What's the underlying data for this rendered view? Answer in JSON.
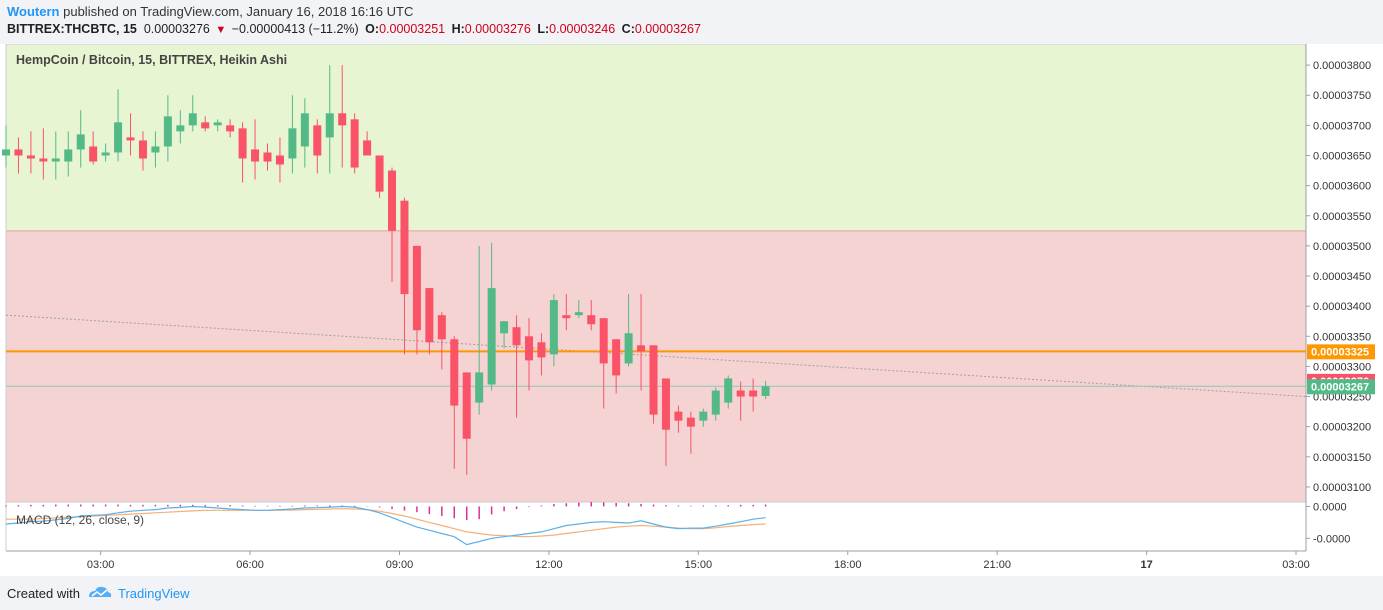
{
  "header": {
    "author": "Woutern",
    "published_text": "published on TradingView.com, January 16, 2018 16:16 UTC",
    "symbol": "BITTREX:THCBTC, 15",
    "last": "0.00003276",
    "change": "−0.00000413 (−11.2%)",
    "o_label": "O:",
    "o_value": "0.00003251",
    "h_label": "H:",
    "h_value": "0.00003276",
    "l_label": "L:",
    "l_value": "0.00003246",
    "c_label": "C:",
    "c_value": "0.00003267"
  },
  "footer": {
    "created_with": "Created with",
    "brand": "TradingView"
  },
  "colors": {
    "up": "#53b987",
    "down": "#fa5266",
    "zone_green": "#e8f5d2",
    "zone_red": "#f5d3d3",
    "support_line": "#ff9800",
    "macd_line": "#5cb0e8",
    "signal_line": "#f3b07a",
    "tag_last": "#fa5266",
    "tag_close": "#53b987",
    "tag_support": "#ff9800"
  },
  "chart_data": {
    "type": "candlestick",
    "title": "HempCoin / Bitcoin, 15, BITTREX, Heikin Ashi",
    "ylim": [
      3.075e-05,
      3.835e-05
    ],
    "yticks": [
      "0.00003800",
      "0.00003750",
      "0.00003700",
      "0.00003650",
      "0.00003600",
      "0.00003550",
      "0.00003500",
      "0.00003450",
      "0.00003400",
      "0.00003350",
      "0.00003300",
      "0.00003250",
      "0.00003200",
      "0.00003150",
      "0.00003100"
    ],
    "xticks": [
      "03:00",
      "06:00",
      "09:00",
      "12:00",
      "15:00",
      "18:00",
      "21:00",
      "17",
      "03:00"
    ],
    "xlim_hours": [
      1.1,
      27.2
    ],
    "resistance_zone": [
      3.525e-05,
      3.835e-05
    ],
    "support_zone": [
      3.075e-05,
      3.525e-05
    ],
    "support_line": 3.325e-05,
    "trendline": [
      [
        1.1,
        3.385e-05
      ],
      [
        27.2,
        3.25e-05
      ]
    ],
    "last_price_tag": "0.00003276",
    "support_tag": "0.00003325",
    "close_tag": "0.00003267",
    "candles": [
      [
        1.1,
        3.65e-05,
        3.7e-05,
        3.63e-05,
        3.66e-05
      ],
      [
        1.35,
        3.66e-05,
        3.68e-05,
        3.62e-05,
        3.65e-05
      ],
      [
        1.6,
        3.65e-05,
        3.69e-05,
        3.62e-05,
        3.645e-05
      ],
      [
        1.85,
        3.645e-05,
        3.695e-05,
        3.61e-05,
        3.64e-05
      ],
      [
        2.1,
        3.64e-05,
        3.69e-05,
        3.61e-05,
        3.645e-05
      ],
      [
        2.35,
        3.64e-05,
        3.69e-05,
        3.615e-05,
        3.66e-05
      ],
      [
        2.6,
        3.66e-05,
        3.725e-05,
        3.63e-05,
        3.685e-05
      ],
      [
        2.85,
        3.665e-05,
        3.69e-05,
        3.635e-05,
        3.64e-05
      ],
      [
        3.1,
        3.65e-05,
        3.67e-05,
        3.64e-05,
        3.655e-05
      ],
      [
        3.35,
        3.655e-05,
        3.76e-05,
        3.64e-05,
        3.705e-05
      ],
      [
        3.6,
        3.68e-05,
        3.72e-05,
        3.65e-05,
        3.675e-05
      ],
      [
        3.85,
        3.675e-05,
        3.69e-05,
        3.625e-05,
        3.645e-05
      ],
      [
        4.1,
        3.655e-05,
        3.69e-05,
        3.63e-05,
        3.665e-05
      ],
      [
        4.35,
        3.665e-05,
        3.75e-05,
        3.64e-05,
        3.715e-05
      ],
      [
        4.6,
        3.69e-05,
        3.725e-05,
        3.67e-05,
        3.7e-05
      ],
      [
        4.85,
        3.7e-05,
        3.75e-05,
        3.69e-05,
        3.72e-05
      ],
      [
        5.1,
        3.705e-05,
        3.715e-05,
        3.69e-05,
        3.695e-05
      ],
      [
        5.35,
        3.7e-05,
        3.71e-05,
        3.69e-05,
        3.705e-05
      ],
      [
        5.6,
        3.7e-05,
        3.71e-05,
        3.68e-05,
        3.69e-05
      ],
      [
        5.85,
        3.695e-05,
        3.705e-05,
        3.605e-05,
        3.645e-05
      ],
      [
        6.1,
        3.66e-05,
        3.71e-05,
        3.61e-05,
        3.64e-05
      ],
      [
        6.35,
        3.655e-05,
        3.67e-05,
        3.625e-05,
        3.64e-05
      ],
      [
        6.6,
        3.65e-05,
        3.68e-05,
        3.605e-05,
        3.635e-05
      ],
      [
        6.85,
        3.645e-05,
        3.75e-05,
        3.62e-05,
        3.695e-05
      ],
      [
        7.1,
        3.665e-05,
        3.745e-05,
        3.63e-05,
        3.72e-05
      ],
      [
        7.35,
        3.7e-05,
        3.71e-05,
        3.62e-05,
        3.65e-05
      ],
      [
        7.6,
        3.68e-05,
        3.8e-05,
        3.62e-05,
        3.72e-05
      ],
      [
        7.85,
        3.72e-05,
        3.8e-05,
        3.63e-05,
        3.7e-05
      ],
      [
        8.1,
        3.71e-05,
        3.72e-05,
        3.62e-05,
        3.63e-05
      ],
      [
        8.35,
        3.675e-05,
        3.69e-05,
        3.65e-05,
        3.65e-05
      ],
      [
        8.6,
        3.65e-05,
        3.65e-05,
        3.58e-05,
        3.59e-05
      ],
      [
        8.85,
        3.625e-05,
        3.63e-05,
        3.44e-05,
        3.525e-05
      ],
      [
        9.1,
        3.575e-05,
        3.58e-05,
        3.32e-05,
        3.42e-05
      ],
      [
        9.35,
        3.5e-05,
        3.5e-05,
        3.32e-05,
        3.36e-05
      ],
      [
        9.6,
        3.43e-05,
        3.43e-05,
        3.32e-05,
        3.34e-05
      ],
      [
        9.85,
        3.385e-05,
        3.39e-05,
        3.295e-05,
        3.345e-05
      ],
      [
        10.1,
        3.345e-05,
        3.35e-05,
        3.13e-05,
        3.235e-05
      ],
      [
        10.35,
        3.29e-05,
        3.29e-05,
        3.12e-05,
        3.18e-05
      ],
      [
        10.6,
        3.24e-05,
        3.5e-05,
        3.22e-05,
        3.29e-05
      ],
      [
        10.85,
        3.27e-05,
        3.505e-05,
        3.26e-05,
        3.43e-05
      ],
      [
        11.1,
        3.355e-05,
        3.375e-05,
        3.33e-05,
        3.375e-05
      ],
      [
        11.35,
        3.365e-05,
        3.385e-05,
        3.215e-05,
        3.335e-05
      ],
      [
        11.6,
        3.35e-05,
        3.38e-05,
        3.26e-05,
        3.31e-05
      ],
      [
        11.85,
        3.34e-05,
        3.355e-05,
        3.285e-05,
        3.315e-05
      ],
      [
        12.1,
        3.32e-05,
        3.42e-05,
        3.3e-05,
        3.41e-05
      ],
      [
        12.35,
        3.385e-05,
        3.42e-05,
        3.36e-05,
        3.38e-05
      ],
      [
        12.6,
        3.385e-05,
        3.41e-05,
        3.38e-05,
        3.39e-05
      ],
      [
        12.85,
        3.385e-05,
        3.41e-05,
        3.36e-05,
        3.37e-05
      ],
      [
        13.1,
        3.38e-05,
        3.38e-05,
        3.23e-05,
        3.305e-05
      ],
      [
        13.35,
        3.345e-05,
        3.345e-05,
        3.255e-05,
        3.285e-05
      ],
      [
        13.6,
        3.305e-05,
        3.42e-05,
        3.3e-05,
        3.355e-05
      ],
      [
        13.85,
        3.335e-05,
        3.42e-05,
        3.26e-05,
        3.325e-05
      ],
      [
        14.1,
        3.335e-05,
        3.335e-05,
        3.205e-05,
        3.22e-05
      ],
      [
        14.35,
        3.28e-05,
        3.28e-05,
        3.135e-05,
        3.195e-05
      ],
      [
        14.6,
        3.225e-05,
        3.235e-05,
        3.19e-05,
        3.21e-05
      ],
      [
        14.85,
        3.215e-05,
        3.225e-05,
        3.155e-05,
        3.2e-05
      ],
      [
        15.1,
        3.21e-05,
        3.23e-05,
        3.2e-05,
        3.225e-05
      ],
      [
        15.35,
        3.22e-05,
        3.265e-05,
        3.21e-05,
        3.26e-05
      ],
      [
        15.6,
        3.24e-05,
        3.285e-05,
        3.23e-05,
        3.28e-05
      ],
      [
        15.85,
        3.26e-05,
        3.275e-05,
        3.21e-05,
        3.25e-05
      ],
      [
        16.1,
        3.26e-05,
        3.28e-05,
        3.225e-05,
        3.25e-05
      ],
      [
        16.35,
        3.251e-05,
        3.276e-05,
        3.246e-05,
        3.267e-05
      ]
    ],
    "macd": {
      "title": "MACD (12, 26, close, 9)",
      "ylim": [
        -1.4e-06,
        1.4e-07
      ],
      "yticks": [
        "0.0000",
        "-0.0000"
      ],
      "ytick_values": [
        0.0,
        -1e-06
      ],
      "histogram": [
        3e-08,
        4e-08,
        5e-08,
        5e-08,
        6e-08,
        6e-08,
        6e-08,
        6e-08,
        6e-08,
        6e-08,
        5e-08,
        5e-08,
        5e-08,
        5e-08,
        5e-08,
        5e-08,
        4e-08,
        4e-08,
        4e-08,
        3e-08,
        2e-08,
        2e-08,
        2e-08,
        2e-08,
        3e-08,
        3e-08,
        3e-08,
        3e-08,
        2e-08,
        1e-08,
        -3e-08,
        -8e-08,
        -1.3e-07,
        -1.8e-07,
        -2.4e-07,
        -3e-07,
        -3.7e-07,
        -4.3e-07,
        -4e-07,
        -2.5e-07,
        -1.5e-07,
        -8e-08,
        -2e-08,
        3e-08,
        8e-08,
        1e-07,
        1.2e-07,
        1.4e-07,
        1.3e-07,
        1.1e-07,
        1e-07,
        8e-08,
        6e-08,
        4e-08,
        3e-08,
        2e-08,
        3e-08,
        3e-08,
        4e-08,
        5e-08,
        5e-08,
        6e-08
      ],
      "macd_line": [
        -5.5e-07,
        -5.2e-07,
        -4.8e-07,
        -4.6e-07,
        -4.2e-07,
        -3.8e-07,
        -3e-07,
        -2.8e-07,
        -2.6e-07,
        -2e-07,
        -1.5e-07,
        -1.2e-07,
        -1e-07,
        -5e-08,
        -3e-08,
        0.0,
        -2e-08,
        -5e-08,
        -8e-08,
        -1e-07,
        -1.2e-07,
        -1.2e-07,
        -1e-07,
        -8e-08,
        -5e-08,
        -4e-08,
        -2e-08,
        0.0,
        -2e-08,
        -1e-07,
        -2e-07,
        -3.5e-07,
        -5e-07,
        -6.5e-07,
        -7.5e-07,
        -8.5e-07,
        -9.5e-07,
        -1.2e-06,
        -1.1e-06,
        -1e-06,
        -9.5e-07,
        -9e-07,
        -8.5e-07,
        -8e-07,
        -7e-07,
        -6e-07,
        -5.5e-07,
        -5e-07,
        -4.8e-07,
        -5e-07,
        -5.2e-07,
        -4.5e-07,
        -5.5e-07,
        -6.5e-07,
        -7e-07,
        -6.8e-07,
        -6.8e-07,
        -6.2e-07,
        -5.5e-07,
        -4.8e-07,
        -4e-07,
        -3.5e-07
      ],
      "signal_line": [
        -4e-07,
        -4e-07,
        -4e-07,
        -3.8e-07,
        -3.6e-07,
        -3.4e-07,
        -3.2e-07,
        -3e-07,
        -2.8e-07,
        -2.6e-07,
        -2.4e-07,
        -2.2e-07,
        -2e-07,
        -1.8e-07,
        -1.6e-07,
        -1.4e-07,
        -1.2e-07,
        -1.2e-07,
        -1.2e-07,
        -1.2e-07,
        -1.2e-07,
        -1.2e-07,
        -1.2e-07,
        -1.1e-07,
        -1e-07,
        -9e-08,
        -8e-08,
        -7e-08,
        -8e-08,
        -1e-07,
        -1.5e-07,
        -2.2e-07,
        -3e-07,
        -4e-07,
        -5e-07,
        -6e-07,
        -7e-07,
        -8e-07,
        -8.5e-07,
        -9e-07,
        -9.2e-07,
        -9.4e-07,
        -9.5e-07,
        -9.3e-07,
        -9e-07,
        -8.5e-07,
        -8e-07,
        -7.5e-07,
        -7e-07,
        -6.5e-07,
        -6.2e-07,
        -6e-07,
        -6.2e-07,
        -6.5e-07,
        -6.8e-07,
        -7e-07,
        -7e-07,
        -6.7e-07,
        -6.3e-07,
        -6e-07,
        -5.7e-07,
        -5.5e-07
      ]
    }
  }
}
